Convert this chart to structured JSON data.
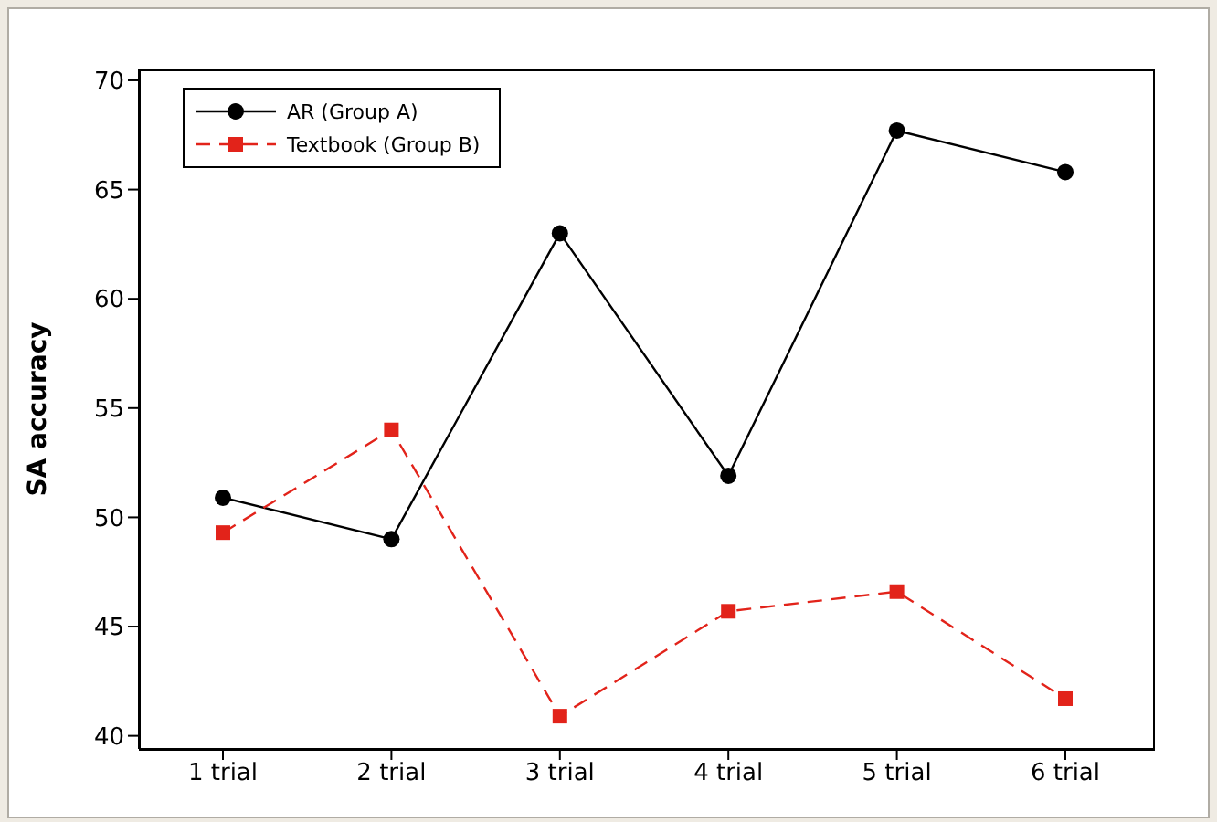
{
  "chart_data": {
    "type": "line",
    "ylabel": "SA accuracy",
    "categories": [
      "1 trial",
      "2 trial",
      "3 trial",
      "4 trial",
      "5 trial",
      "6 trial"
    ],
    "series": [
      {
        "name": "AR (Group A)",
        "color": "#000000",
        "marker": "circle",
        "line_style": "solid",
        "values": [
          50.9,
          49.0,
          63.0,
          51.9,
          67.7,
          65.8
        ]
      },
      {
        "name": "Textbook (Group B)",
        "color": "#e2231a",
        "marker": "square",
        "line_style": "dashed",
        "values": [
          49.3,
          54.0,
          40.9,
          45.7,
          46.6,
          41.7
        ]
      }
    ],
    "ylim": [
      39.4,
      70.5
    ],
    "yticks": [
      40,
      45,
      50,
      55,
      60,
      65,
      70
    ],
    "grid": false,
    "legend": "top left"
  }
}
